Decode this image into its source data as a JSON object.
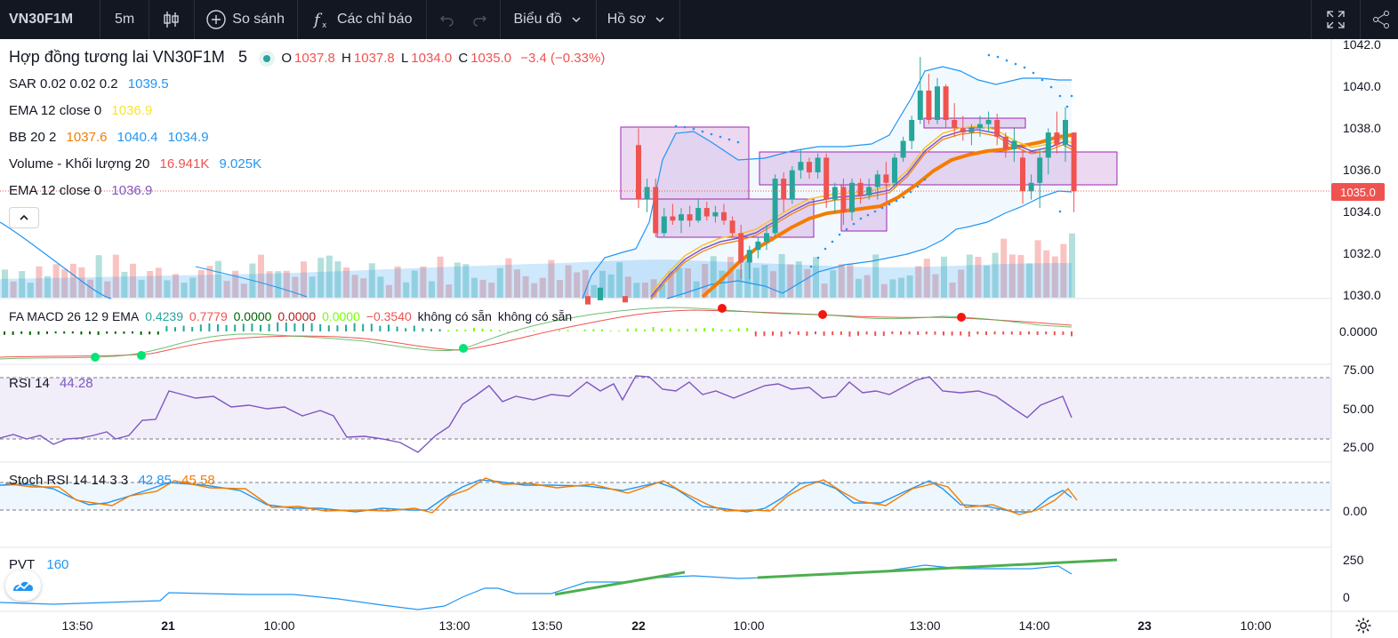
{
  "toolbar": {
    "symbol": "VN30F1M",
    "interval": "5m",
    "compare_label": "So sánh",
    "indicators_label": "Các chỉ báo",
    "chart_menu_label": "Biểu đồ",
    "profile_menu_label": "Hồ sơ",
    "icons": [
      "candles-icon",
      "plus-circle-icon",
      "fx-icon",
      "undo-icon",
      "redo-icon",
      "chevron-down-icon",
      "fullscreen-icon",
      "share-icon"
    ]
  },
  "legend": {
    "title": "Hợp đồng tương lai VN30F1M",
    "title_interval": "5",
    "ohlc": {
      "o_label": "O",
      "o": "1037.8",
      "h_label": "H",
      "h": "1037.8",
      "l_label": "L",
      "l": "1034.0",
      "c_label": "C",
      "c": "1035.0",
      "change": "−3.4 (−0.33%)"
    },
    "sar": {
      "label": "SAR 0.02 0.02 0.2",
      "value": "1039.5"
    },
    "ema1": {
      "label": "EMA 12 close 0",
      "value": "1036.9"
    },
    "bb": {
      "label": "BB 20 2",
      "mid": "1037.6",
      "upper": "1040.4",
      "lower": "1034.9"
    },
    "volume": {
      "label": "Volume - Khối lượng 20",
      "value": "16.941K",
      "ma": "9.025K"
    },
    "ema2": {
      "label": "EMA 12 close 0",
      "value": "1036.9"
    }
  },
  "macd_legend": {
    "label": "FA MACD 26 12 9 EMA",
    "v1": "0.4239",
    "v2": "0.7779",
    "v3": "0.0000",
    "v4": "0.0000",
    "v5": "0.0000",
    "v6": "−0.3540",
    "na1": "không có sẵn",
    "na2": "không có sẵn"
  },
  "rsi_legend": {
    "label": "RSI 14",
    "value": "44.28"
  },
  "stoch_legend": {
    "label": "Stoch RSI 14 14 3 3",
    "k": "42.85",
    "d": "45.58"
  },
  "pvt_legend": {
    "label": "PVT",
    "value": "160"
  },
  "last_price_tag": "1035.0",
  "price_axis": [
    "1042.0",
    "1040.0",
    "1038.0",
    "1036.0",
    "1034.0",
    "1032.0",
    "1030.0"
  ],
  "macd_axis": [
    "0.0000"
  ],
  "rsi_axis": [
    "75.00",
    "50.00",
    "25.00"
  ],
  "stoch_axis": [
    "0.00"
  ],
  "pvt_axis": [
    "250",
    "0"
  ],
  "time_axis": [
    {
      "label": "13:50",
      "bold": false
    },
    {
      "label": "21",
      "bold": true
    },
    {
      "label": "10:00",
      "bold": false
    },
    {
      "label": "13:00",
      "bold": false
    },
    {
      "label": "13:50",
      "bold": false
    },
    {
      "label": "22",
      "bold": true
    },
    {
      "label": "10:00",
      "bold": false
    },
    {
      "label": "13:00",
      "bold": false
    },
    {
      "label": "14:00",
      "bold": false
    },
    {
      "label": "23",
      "bold": true
    },
    {
      "label": "10:00",
      "bold": false
    }
  ],
  "colors": {
    "up": "#26a69a",
    "down": "#ef5350",
    "bb": "#2196f3",
    "ema": "#f57c00",
    "rsi": "#7e57c2",
    "stoch_k": "#2196f3",
    "stoch_d": "#f57c00",
    "pvt": "#2196f3",
    "trend": "#4caf50"
  },
  "chart_data": {
    "type": "candlestick",
    "price_range": [
      1029.8,
      1042.2
    ],
    "candles": [
      {
        "o": 1037.2,
        "h": 1038.0,
        "l": 1034.2,
        "c": 1034.6
      },
      {
        "o": 1034.6,
        "h": 1035.6,
        "l": 1034.0,
        "c": 1035.2
      },
      {
        "o": 1035.2,
        "h": 1035.6,
        "l": 1032.8,
        "c": 1033.0
      },
      {
        "o": 1033.0,
        "h": 1034.2,
        "l": 1032.8,
        "c": 1033.8
      },
      {
        "o": 1033.8,
        "h": 1034.4,
        "l": 1033.4,
        "c": 1033.6
      },
      {
        "o": 1033.6,
        "h": 1034.2,
        "l": 1033.0,
        "c": 1033.9
      },
      {
        "o": 1033.9,
        "h": 1034.3,
        "l": 1033.3,
        "c": 1033.6
      },
      {
        "o": 1033.6,
        "h": 1034.6,
        "l": 1033.5,
        "c": 1034.2
      },
      {
        "o": 1034.2,
        "h": 1034.5,
        "l": 1033.6,
        "c": 1033.8
      },
      {
        "o": 1033.8,
        "h": 1034.3,
        "l": 1033.5,
        "c": 1034.0
      },
      {
        "o": 1034.0,
        "h": 1034.4,
        "l": 1033.4,
        "c": 1033.6
      },
      {
        "o": 1033.6,
        "h": 1033.8,
        "l": 1032.8,
        "c": 1033.0
      },
      {
        "o": 1033.0,
        "h": 1033.4,
        "l": 1030.8,
        "c": 1031.6
      },
      {
        "o": 1031.6,
        "h": 1032.4,
        "l": 1030.8,
        "c": 1032.2
      },
      {
        "o": 1032.2,
        "h": 1032.8,
        "l": 1031.8,
        "c": 1032.6
      },
      {
        "o": 1032.6,
        "h": 1033.4,
        "l": 1032.2,
        "c": 1033.0
      },
      {
        "o": 1033.0,
        "h": 1035.8,
        "l": 1032.8,
        "c": 1035.6
      },
      {
        "o": 1035.6,
        "h": 1035.9,
        "l": 1034.0,
        "c": 1034.6
      },
      {
        "o": 1034.6,
        "h": 1036.2,
        "l": 1034.4,
        "c": 1036.0
      },
      {
        "o": 1036.0,
        "h": 1037.0,
        "l": 1035.6,
        "c": 1036.4
      },
      {
        "o": 1036.4,
        "h": 1036.6,
        "l": 1035.6,
        "c": 1035.9
      },
      {
        "o": 1035.9,
        "h": 1036.8,
        "l": 1035.6,
        "c": 1036.6
      },
      {
        "o": 1036.6,
        "h": 1036.8,
        "l": 1034.2,
        "c": 1034.6
      },
      {
        "o": 1034.6,
        "h": 1035.4,
        "l": 1034.0,
        "c": 1035.2
      },
      {
        "o": 1035.2,
        "h": 1035.6,
        "l": 1033.4,
        "c": 1034.0
      },
      {
        "o": 1034.0,
        "h": 1035.6,
        "l": 1033.6,
        "c": 1035.4
      },
      {
        "o": 1035.4,
        "h": 1035.6,
        "l": 1034.4,
        "c": 1034.8
      },
      {
        "o": 1034.8,
        "h": 1035.6,
        "l": 1034.6,
        "c": 1035.2
      },
      {
        "o": 1035.2,
        "h": 1036.0,
        "l": 1034.6,
        "c": 1035.8
      },
      {
        "o": 1035.8,
        "h": 1036.4,
        "l": 1035.2,
        "c": 1035.4
      },
      {
        "o": 1035.4,
        "h": 1036.8,
        "l": 1035.2,
        "c": 1036.6
      },
      {
        "o": 1036.6,
        "h": 1037.6,
        "l": 1036.4,
        "c": 1037.4
      },
      {
        "o": 1037.4,
        "h": 1038.6,
        "l": 1037.0,
        "c": 1038.4
      },
      {
        "o": 1038.4,
        "h": 1041.4,
        "l": 1038.2,
        "c": 1039.8
      },
      {
        "o": 1039.8,
        "h": 1040.6,
        "l": 1038.2,
        "c": 1038.4
      },
      {
        "o": 1038.4,
        "h": 1040.4,
        "l": 1038.2,
        "c": 1040.0
      },
      {
        "o": 1040.0,
        "h": 1040.1,
        "l": 1038.0,
        "c": 1038.4
      },
      {
        "o": 1038.4,
        "h": 1039.2,
        "l": 1037.6,
        "c": 1038.0
      },
      {
        "o": 1038.0,
        "h": 1038.6,
        "l": 1037.4,
        "c": 1037.8
      },
      {
        "o": 1037.8,
        "h": 1038.2,
        "l": 1037.2,
        "c": 1038.0
      },
      {
        "o": 1038.0,
        "h": 1038.6,
        "l": 1037.6,
        "c": 1038.2
      },
      {
        "o": 1038.2,
        "h": 1038.8,
        "l": 1037.8,
        "c": 1038.4
      },
      {
        "o": 1038.4,
        "h": 1038.7,
        "l": 1037.2,
        "c": 1037.6
      },
      {
        "o": 1037.6,
        "h": 1037.8,
        "l": 1036.6,
        "c": 1037.0
      },
      {
        "o": 1037.0,
        "h": 1038.0,
        "l": 1036.4,
        "c": 1037.4
      },
      {
        "o": 1036.6,
        "h": 1037.0,
        "l": 1034.4,
        "c": 1035.0
      },
      {
        "o": 1035.0,
        "h": 1035.8,
        "l": 1034.6,
        "c": 1035.4
      },
      {
        "o": 1035.4,
        "h": 1037.0,
        "l": 1034.2,
        "c": 1036.6
      },
      {
        "o": 1036.6,
        "h": 1038.0,
        "l": 1035.8,
        "c": 1037.8
      },
      {
        "o": 1037.8,
        "h": 1038.8,
        "l": 1036.8,
        "c": 1037.2
      },
      {
        "o": 1037.2,
        "h": 1039.0,
        "l": 1036.4,
        "c": 1038.4
      },
      {
        "o": 1037.8,
        "h": 1037.8,
        "l": 1034.0,
        "c": 1035.0
      }
    ]
  }
}
